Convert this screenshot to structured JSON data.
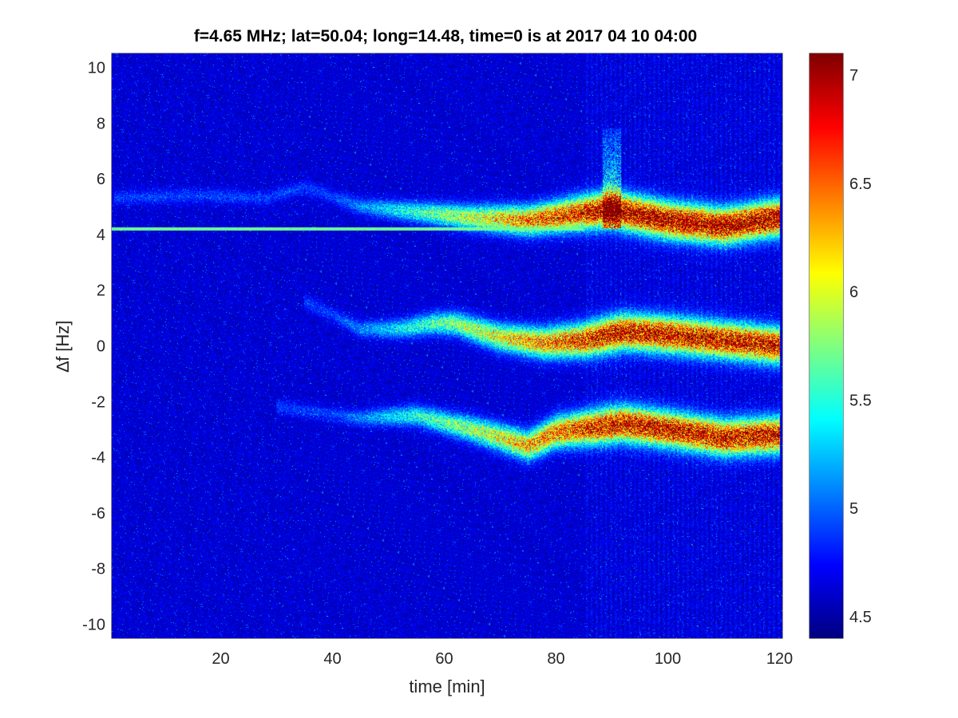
{
  "chart_data": {
    "type": "heatmap",
    "title": "f=4.65 MHz;  lat=50.04; long=14.48, time=0 is at 2017 04 10 04:00",
    "xlabel": "time [min]",
    "ylabel": "∆f [Hz]",
    "xlim": [
      0.5,
      120.5
    ],
    "ylim": [
      -10.5,
      10.5
    ],
    "x_ticks": [
      20,
      40,
      60,
      80,
      100,
      120
    ],
    "y_ticks": [
      10,
      8,
      6,
      4,
      2,
      0,
      -2,
      -4,
      -6,
      -8,
      -10
    ],
    "colormap": "jet",
    "colorbar": {
      "range": [
        4.4,
        7.1
      ],
      "ticks": [
        4.5,
        5,
        5.5,
        6,
        6.5,
        7
      ],
      "placement": "right"
    },
    "grid": false,
    "features": [
      {
        "name": "carrier line",
        "y": 4.2,
        "x_range": [
          0.5,
          120.5
        ],
        "value": 5.6
      },
      {
        "name": "upper trace",
        "points": [
          [
            1,
            5.3
          ],
          [
            15,
            5.4
          ],
          [
            28,
            5.3
          ],
          [
            35,
            5.7
          ],
          [
            45,
            5.0
          ],
          [
            55,
            4.8
          ],
          [
            65,
            4.6
          ],
          [
            75,
            4.5
          ],
          [
            82,
            4.7
          ],
          [
            90,
            4.9
          ],
          [
            100,
            4.5
          ],
          [
            110,
            4.3
          ],
          [
            120,
            4.6
          ]
        ],
        "peak_value": 7.0
      },
      {
        "name": "middle trace",
        "points": [
          [
            35,
            1.6
          ],
          [
            45,
            0.6
          ],
          [
            52,
            0.6
          ],
          [
            58,
            0.8
          ],
          [
            62,
            0.8
          ],
          [
            70,
            0.3
          ],
          [
            78,
            0.1
          ],
          [
            85,
            0.2
          ],
          [
            92,
            0.5
          ],
          [
            100,
            0.4
          ],
          [
            110,
            0.2
          ],
          [
            120,
            0.0
          ]
        ],
        "peak_value": 6.8
      },
      {
        "name": "lower trace",
        "points": [
          [
            30,
            -2.2
          ],
          [
            45,
            -2.6
          ],
          [
            55,
            -2.5
          ],
          [
            65,
            -3.0
          ],
          [
            75,
            -3.6
          ],
          [
            80,
            -3.1
          ],
          [
            88,
            -2.9
          ],
          [
            92,
            -2.8
          ],
          [
            100,
            -3.0
          ],
          [
            110,
            -3.3
          ],
          [
            120,
            -3.2
          ]
        ],
        "peak_value": 6.8
      },
      {
        "name": "spike",
        "x": 90,
        "y_range": [
          4.2,
          7.8
        ],
        "value": 6.2
      }
    ]
  }
}
